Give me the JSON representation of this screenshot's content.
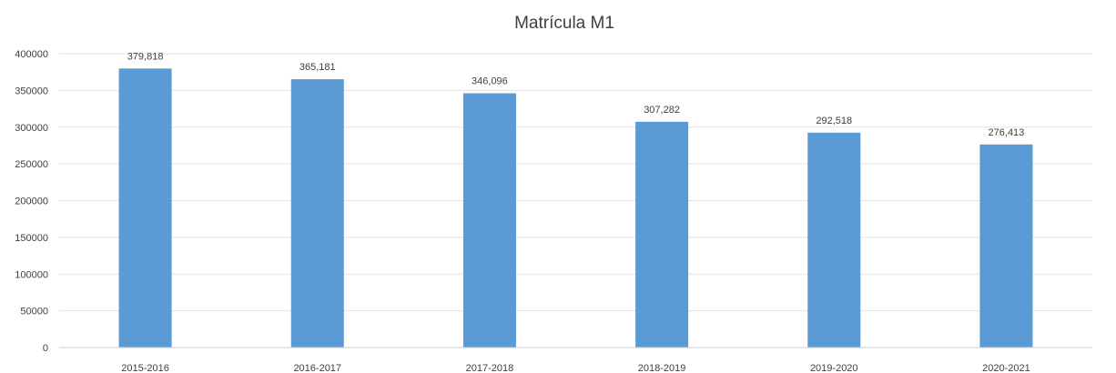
{
  "chart_data": {
    "type": "bar",
    "title": "Matrícula M1",
    "xlabel": "",
    "ylabel": "",
    "categories": [
      "2015-2016",
      "2016-2017",
      "2017-2018",
      "2018-2019",
      "2019-2020",
      "2020-2021"
    ],
    "values": [
      379818,
      365181,
      346096,
      307282,
      292518,
      276413
    ],
    "data_labels": [
      "379,818",
      "365,181",
      "346,096",
      "307,282",
      "292,518",
      "276,413"
    ],
    "ylim": [
      0,
      400000
    ],
    "yticks": [
      0,
      50000,
      100000,
      150000,
      200000,
      250000,
      300000,
      350000,
      400000
    ],
    "ytick_labels": [
      "0",
      "50000",
      "100000",
      "150000",
      "200000",
      "250000",
      "300000",
      "350000",
      "400000"
    ],
    "grid": true,
    "legend": "none",
    "bar_color": "#5b9bd5"
  }
}
